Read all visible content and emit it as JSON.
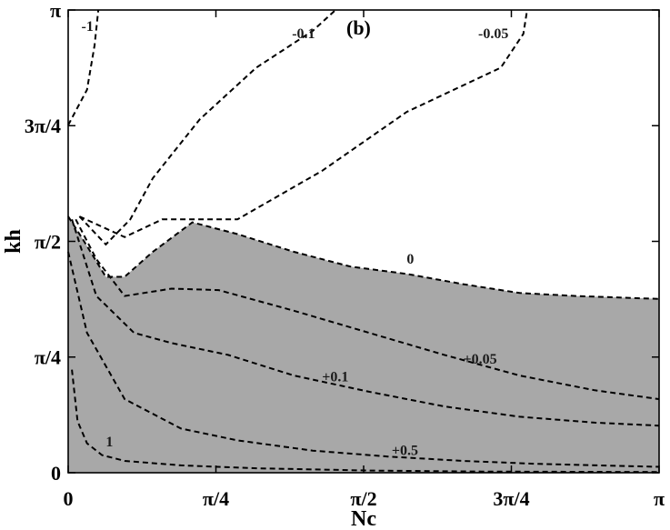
{
  "chart_data": {
    "type": "contour",
    "panel_label": "(b)",
    "xlabel": "Nc",
    "ylabel": "kh",
    "xlim": [
      0,
      3.14159
    ],
    "ylim": [
      0,
      3.14159
    ],
    "x_ticks": [
      {
        "value": 0,
        "label": "0"
      },
      {
        "value": 0.7854,
        "label": "π/4"
      },
      {
        "value": 1.5708,
        "label": "π/2"
      },
      {
        "value": 2.3562,
        "label": "3π/4"
      },
      {
        "value": 3.14159,
        "label": "π"
      }
    ],
    "y_ticks": [
      {
        "value": 0,
        "label": "0"
      },
      {
        "value": 0.7854,
        "label": "π/4"
      },
      {
        "value": 1.5708,
        "label": "π/2"
      },
      {
        "value": 2.3562,
        "label": "3π/4"
      },
      {
        "value": 3.14159,
        "label": "π"
      }
    ],
    "shaded_region": {
      "color": "#a8a8a8",
      "boundary_level": "0",
      "description_level": "0",
      "points": [
        [
          0,
          1.74
        ],
        [
          0.08,
          1.58
        ],
        [
          0.2,
          1.33
        ],
        [
          0.3,
          1.33
        ],
        [
          0.45,
          1.5
        ],
        [
          0.66,
          1.7
        ],
        [
          0.9,
          1.62
        ],
        [
          1.2,
          1.5
        ],
        [
          1.5,
          1.4
        ],
        [
          1.8,
          1.35
        ],
        [
          2.1,
          1.28
        ],
        [
          2.4,
          1.22
        ],
        [
          2.7,
          1.2
        ],
        [
          3.14,
          1.18
        ]
      ]
    },
    "contours": [
      {
        "label": "-1",
        "points": [
          [
            0,
            2.36
          ],
          [
            0.1,
            2.6
          ],
          [
            0.14,
            2.9
          ],
          [
            0.16,
            3.14
          ]
        ]
      },
      {
        "label": "-0.1",
        "points": [
          [
            0.06,
            1.74
          ],
          [
            0.2,
            1.55
          ],
          [
            0.33,
            1.72
          ],
          [
            0.45,
            2.0
          ],
          [
            0.7,
            2.4
          ],
          [
            1.0,
            2.75
          ],
          [
            1.3,
            3.0
          ],
          [
            1.42,
            3.14
          ]
        ]
      },
      {
        "label": "-0.05",
        "points": [
          [
            0.06,
            1.74
          ],
          [
            0.3,
            1.6
          ],
          [
            0.5,
            1.72
          ],
          [
            0.9,
            1.72
          ],
          [
            1.35,
            2.05
          ],
          [
            1.8,
            2.45
          ],
          [
            2.3,
            2.75
          ],
          [
            2.42,
            2.98
          ],
          [
            2.44,
            3.14
          ]
        ]
      },
      {
        "label": "0",
        "points": [
          [
            0,
            1.74
          ],
          [
            0.08,
            1.58
          ],
          [
            0.2,
            1.33
          ],
          [
            0.3,
            1.33
          ],
          [
            0.45,
            1.5
          ],
          [
            0.66,
            1.7
          ],
          [
            0.9,
            1.62
          ],
          [
            1.2,
            1.5
          ],
          [
            1.5,
            1.4
          ],
          [
            1.8,
            1.35
          ],
          [
            2.1,
            1.28
          ],
          [
            2.4,
            1.22
          ],
          [
            2.7,
            1.2
          ],
          [
            3.14,
            1.18
          ]
        ]
      },
      {
        "label": "±0.05",
        "points": [
          [
            0.04,
            1.72
          ],
          [
            0.15,
            1.45
          ],
          [
            0.3,
            1.2
          ],
          [
            0.55,
            1.25
          ],
          [
            0.8,
            1.24
          ],
          [
            1.2,
            1.1
          ],
          [
            1.6,
            0.95
          ],
          [
            2.0,
            0.8
          ],
          [
            2.4,
            0.66
          ],
          [
            2.8,
            0.56
          ],
          [
            3.14,
            0.5
          ]
        ]
      },
      {
        "label": "±0.1",
        "points": [
          [
            0.02,
            1.72
          ],
          [
            0.15,
            1.2
          ],
          [
            0.35,
            0.95
          ],
          [
            0.55,
            0.88
          ],
          [
            0.85,
            0.8
          ],
          [
            1.2,
            0.66
          ],
          [
            1.6,
            0.55
          ],
          [
            2.0,
            0.45
          ],
          [
            2.4,
            0.38
          ],
          [
            2.8,
            0.34
          ],
          [
            3.14,
            0.32
          ]
        ]
      },
      {
        "label": "±0.5",
        "points": [
          [
            0.0,
            1.5
          ],
          [
            0.1,
            0.95
          ],
          [
            0.3,
            0.5
          ],
          [
            0.6,
            0.3
          ],
          [
            0.9,
            0.22
          ],
          [
            1.3,
            0.15
          ],
          [
            1.7,
            0.11
          ],
          [
            2.1,
            0.08
          ],
          [
            2.5,
            0.06
          ],
          [
            3.14,
            0.04
          ]
        ]
      },
      {
        "label": "1",
        "points": [
          [
            0.02,
            0.7
          ],
          [
            0.05,
            0.35
          ],
          [
            0.1,
            0.2
          ],
          [
            0.18,
            0.12
          ],
          [
            0.3,
            0.08
          ],
          [
            0.6,
            0.05
          ],
          [
            1.0,
            0.03
          ],
          [
            1.6,
            0.015
          ],
          [
            2.2,
            0.008
          ],
          [
            3.14,
            0.005
          ]
        ]
      }
    ],
    "contour_labels": [
      {
        "text": "-1",
        "x": 0.07,
        "y": 3.0
      },
      {
        "text": "-0.1",
        "x": 1.19,
        "y": 2.95
      },
      {
        "text": "-0.05",
        "x": 2.18,
        "y": 2.95
      },
      {
        "text": "0",
        "x": 1.8,
        "y": 1.42
      },
      {
        "text": "+0.05",
        "x": 2.1,
        "y": 0.74
      },
      {
        "text": "+0.1",
        "x": 1.35,
        "y": 0.62
      },
      {
        "text": "+0.5",
        "x": 1.72,
        "y": 0.12
      },
      {
        "text": "1",
        "x": 0.2,
        "y": 0.18
      }
    ],
    "grid": false
  }
}
